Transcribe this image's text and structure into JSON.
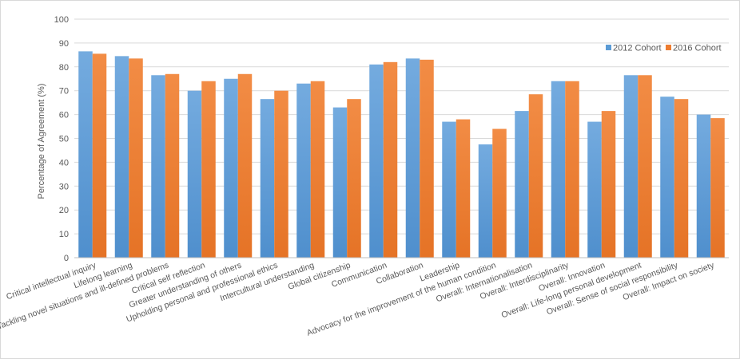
{
  "chart_data": {
    "type": "bar",
    "ylabel": "Percentage of Agreement (%)",
    "ylim": [
      0,
      100
    ],
    "yticks": [
      "0",
      "10",
      "20",
      "30",
      "40",
      "50",
      "60",
      "70",
      "80",
      "90",
      "100"
    ],
    "grid": true,
    "legend_position": "top-right",
    "categories": [
      "Critical intellectual inquiry",
      "Lifelong learning",
      "Tackling novel situations and ill-defined problems",
      "Critical self reflection",
      "Greater understanding of others",
      "Upholding personal and professional ethics",
      "Intercultural understanding",
      "Global citizenship",
      "Communication",
      "Collaboration",
      "Leadership",
      "Advocacy for the improvement of the human condition",
      "Overall: Internationalisation",
      "Overall: Interdisciplinarity",
      "Overall: Innovation",
      "Overall: Life-long personal development",
      "Overall: Sense of social responsibility",
      "Overall: Impact on society"
    ],
    "series": [
      {
        "name": "2012 Cohort",
        "color": "#5b9bd5",
        "values": [
          86.5,
          84.5,
          76.5,
          70,
          75,
          66.5,
          73,
          63,
          81,
          83.5,
          57,
          47.5,
          61.5,
          74,
          57,
          76.5,
          67.5,
          60
        ]
      },
      {
        "name": "2016 Cohort",
        "color": "#ed7d31",
        "values": [
          85.5,
          83.5,
          77,
          74,
          77,
          70,
          74,
          66.5,
          82,
          83,
          58,
          54,
          68.5,
          74,
          61.5,
          76.5,
          66.5,
          58.5
        ]
      }
    ]
  }
}
